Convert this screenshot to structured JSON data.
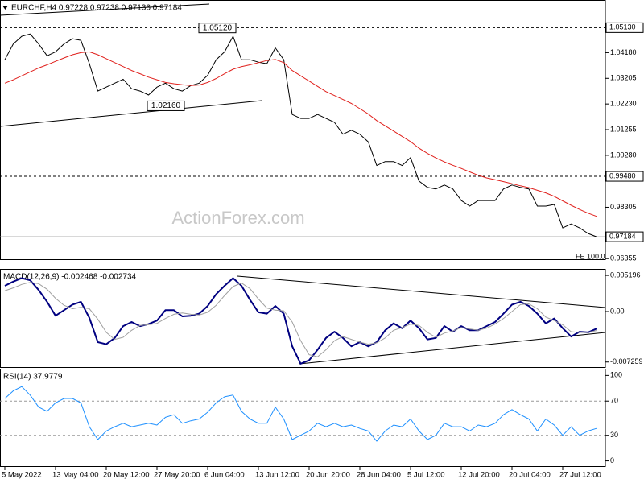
{
  "watermark": "ActionForex.com",
  "chart_data": [
    {
      "type": "line",
      "title": "EURCHF,H4 0.97228 0.97238 0.97136 0.97184",
      "fe_label": "FE 100.0",
      "ylim": [
        0.963,
        1.0612
      ],
      "yticks": [
        {
          "value": 1.0418,
          "label": "1.04180"
        },
        {
          "value": 1.03205,
          "label": "1.03205"
        },
        {
          "value": 1.0223,
          "label": "1.02230"
        },
        {
          "value": 1.01255,
          "label": "1.01255"
        },
        {
          "value": 1.0028,
          "label": "1.00280"
        },
        {
          "value": 0.98305,
          "label": "0.98305"
        },
        {
          "value": 0.96355,
          "label": "0.96355"
        }
      ],
      "levels": [
        {
          "value": 1.0513,
          "label": "1.05130",
          "style": "dashed"
        },
        {
          "value": 0.9948,
          "label": "0.99480",
          "style": "dashed"
        },
        {
          "value": 0.97184,
          "label": "0.97184",
          "style": "solid"
        }
      ],
      "annotations": [
        {
          "value": 1.0512,
          "label": "1.05120"
        },
        {
          "value": 1.0216,
          "label": "1.02160"
        }
      ],
      "series": [
        {
          "color": "#000000",
          "line_width": 1,
          "values": [
            1.0391,
            1.0451,
            1.048,
            1.0489,
            1.0451,
            1.0406,
            1.0421,
            1.0451,
            1.0471,
            1.0465,
            1.0376,
            1.0272,
            1.0287,
            1.0302,
            1.0317,
            1.0281,
            1.0272,
            1.0257,
            1.0287,
            1.0302,
            1.0281,
            1.0272,
            1.0293,
            1.0302,
            1.0332,
            1.0391,
            1.0421,
            1.048,
            1.0391,
            1.0391,
            1.0382,
            1.0376,
            1.0436,
            1.0391,
            1.0183,
            1.0168,
            1.0168,
            1.0183,
            1.0168,
            1.0153,
            1.0108,
            1.0123,
            1.0108,
            1.0079,
            0.9989,
            1.0004,
            1.0004,
            0.9989,
            1.0019,
            0.993,
            0.9906,
            0.99,
            0.9915,
            0.99,
            0.9856,
            0.9835,
            0.9856,
            0.9856,
            0.9856,
            0.99,
            0.9915,
            0.9906,
            0.99,
            0.9835,
            0.9835,
            0.9841,
            0.9752,
            0.9767,
            0.9752,
            0.9731,
            0.97184
          ]
        },
        {
          "color": "#e0201c",
          "line_width": 1,
          "values": [
            1.0302,
            1.0315,
            1.033,
            1.0345,
            1.036,
            1.0372,
            1.0385,
            1.0398,
            1.041,
            1.0418,
            1.0421,
            1.041,
            1.0395,
            1.038,
            1.0365,
            1.035,
            1.0338,
            1.0325,
            1.0315,
            1.0305,
            1.03,
            1.0296,
            1.0293,
            1.0295,
            1.0305,
            1.032,
            1.0338,
            1.0355,
            1.0365,
            1.0372,
            1.038,
            1.0388,
            1.0392,
            1.038,
            1.035,
            1.033,
            1.031,
            1.029,
            1.027,
            1.0255,
            1.024,
            1.0225,
            1.0205,
            1.0185,
            1.016,
            1.014,
            1.012,
            1.01,
            1.008,
            1.0055,
            1.0035,
            1.0018,
            1.0003,
            0.999,
            0.9978,
            0.9965,
            0.9952,
            0.9942,
            0.9935,
            0.9928,
            0.992,
            0.9912,
            0.9905,
            0.9895,
            0.9885,
            0.9872,
            0.9855,
            0.9838,
            0.9822,
            0.9808,
            0.9796
          ]
        }
      ]
    },
    {
      "type": "line",
      "title": "MACD(12,26,9) -0.002468 -0.002734",
      "ylim": [
        -0.0081,
        0.0059
      ],
      "yticks": [
        0.005196,
        {
          "value": 0,
          "label": "0.00"
        },
        -0.007259
      ],
      "series": [
        {
          "color": "#000080",
          "line_width": 2,
          "values": [
            0.0037,
            0.0043,
            0.0048,
            0.0045,
            0.0031,
            0.0014,
            -0.0006,
            0.0002,
            0.001,
            0.0014,
            -0.0009,
            -0.0044,
            -0.0047,
            -0.0038,
            -0.0021,
            -0.0015,
            -0.0021,
            -0.0018,
            -0.0013,
            0.0002,
            0.0002,
            -0.0007,
            -0.0006,
            -0.0003,
            0.0008,
            0.0025,
            0.0037,
            0.0048,
            0.0037,
            0.0017,
            -0.0001,
            -0.0003,
            0.0008,
            -0.0003,
            -0.005,
            -0.0075,
            -0.007,
            -0.0055,
            -0.0038,
            -0.0029,
            -0.0038,
            -0.005,
            -0.0044,
            -0.005,
            -0.0044,
            -0.0027,
            -0.0017,
            -0.0024,
            -0.0013,
            -0.0024,
            -0.004,
            -0.0038,
            -0.0021,
            -0.0029,
            -0.0021,
            -0.0027,
            -0.0027,
            -0.0021,
            -0.0015,
            -0.0003,
            0.001,
            0.0014,
            0.0008,
            -0.0003,
            -0.0017,
            -0.001,
            -0.0024,
            -0.0036,
            -0.0029,
            -0.003,
            -0.002468
          ]
        },
        {
          "color": "#a0a0a0",
          "line_width": 1,
          "values": [
            0.003,
            0.0034,
            0.0039,
            0.0042,
            0.004,
            0.0032,
            0.0019,
            0.0009,
            0.0004,
            0.0006,
            0.0004,
            -0.0011,
            -0.003,
            -0.004,
            -0.0037,
            -0.0027,
            -0.002,
            -0.0019,
            -0.0017,
            -0.001,
            -0.0004,
            -0.0002,
            -0.0004,
            -0.0005,
            -0.0001,
            0.0009,
            0.0023,
            0.0036,
            0.0041,
            0.0033,
            0.0018,
            0.0005,
            0.0002,
            0.0001,
            -0.0015,
            -0.0042,
            -0.0062,
            -0.0065,
            -0.0055,
            -0.0042,
            -0.0036,
            -0.004,
            -0.0044,
            -0.0047,
            -0.0045,
            -0.0038,
            -0.0027,
            -0.0023,
            -0.0018,
            -0.002,
            -0.003,
            -0.0037,
            -0.0031,
            -0.0028,
            -0.0023,
            -0.0025,
            -0.0027,
            -0.0024,
            -0.0018,
            -0.001,
            0.0,
            0.001,
            0.0011,
            0.0004,
            -0.0008,
            -0.0013,
            -0.0019,
            -0.0029,
            -0.003,
            -0.003,
            -0.002734
          ]
        }
      ]
    },
    {
      "type": "line",
      "title": "RSI(14) 37.9779",
      "ylim": [
        -7,
        106
      ],
      "yticks": [
        100,
        70,
        30,
        0
      ],
      "levels": [
        70,
        30
      ],
      "categories": [
        "5 May 2022",
        null,
        null,
        null,
        null,
        null,
        "13 May 04:00",
        null,
        null,
        null,
        null,
        null,
        "20 May 12:00",
        null,
        null,
        null,
        null,
        null,
        "27 May 20:00",
        null,
        null,
        null,
        null,
        null,
        "6 Jun 04:00",
        null,
        null,
        null,
        null,
        null,
        "13 Jun 12:00",
        null,
        null,
        null,
        null,
        null,
        "20 Jun 20:00",
        null,
        null,
        null,
        null,
        null,
        "28 Jun 04:00",
        null,
        null,
        null,
        null,
        null,
        "5 Jul 12:00",
        null,
        null,
        null,
        null,
        null,
        "12 Jul 20:00",
        null,
        null,
        null,
        null,
        null,
        "20 Jul 04:00",
        null,
        null,
        null,
        null,
        null,
        "27 Jul 12:00",
        null,
        null,
        null,
        null
      ],
      "series": [
        {
          "color": "#1e90ff",
          "line_width": 1,
          "values": [
            73,
            82,
            87,
            77,
            63,
            58,
            68,
            73,
            73,
            68,
            40,
            25,
            35,
            40,
            44,
            40,
            42,
            44,
            42,
            51,
            54,
            44,
            47,
            49,
            57,
            68,
            75,
            77,
            58,
            49,
            44,
            44,
            63,
            49,
            25,
            30,
            35,
            44,
            40,
            44,
            40,
            42,
            38,
            35,
            23,
            35,
            42,
            40,
            49,
            35,
            25,
            30,
            44,
            40,
            40,
            35,
            42,
            40,
            44,
            54,
            60,
            54,
            49,
            35,
            49,
            42,
            30,
            40,
            30,
            35,
            37.9779
          ]
        }
      ]
    }
  ]
}
